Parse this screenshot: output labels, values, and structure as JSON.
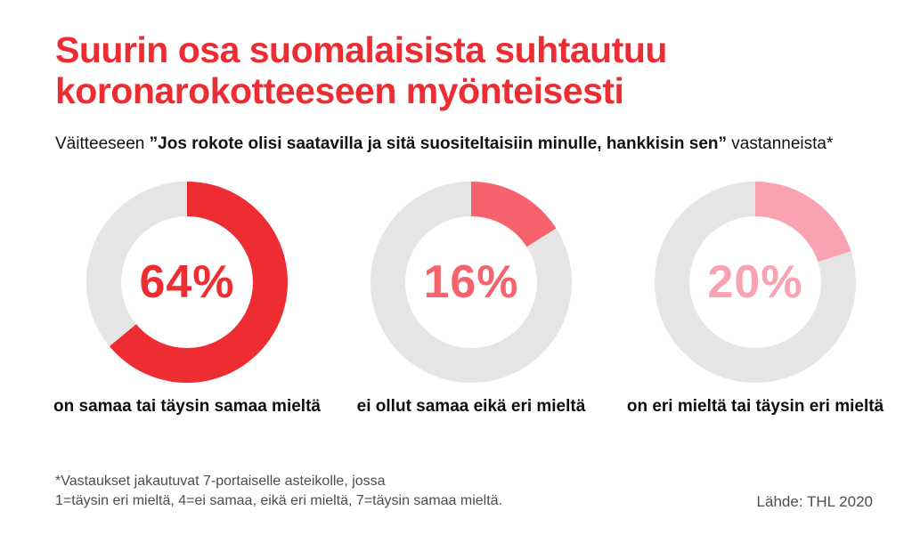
{
  "header": {
    "title_line1": "Suurin osa suomalaisista suhtautuu",
    "title_line2": "koronarokotteeseen myönteisesti",
    "title_color": "#ee2d33"
  },
  "subtitle": {
    "prefix": "Väitteeseen ",
    "quote": "”Jos rokote olisi saatavilla ja sitä suositeltaisiin minulle, hankkisin sen”",
    "suffix": " vastanneista*"
  },
  "chart_data": {
    "type": "pie",
    "variant": "donut",
    "title": "Suurin osa suomalaisista suhtautuu koronarokotteeseen myönteisesti",
    "subtitle": "Väitteeseen ”Jos rokote olisi saatavilla ja sitä suositeltaisiin minulle, hankkisin sen” vastanneista*",
    "start_angle_deg": 0,
    "direction": "clockwise",
    "track_color": "#e5e5e6",
    "donuts": [
      {
        "value": 64,
        "value_label": "64%",
        "label": "on samaa tai täysin samaa mieltä",
        "color": "#ee2d33"
      },
      {
        "value": 16,
        "value_label": "16%",
        "label": "ei ollut samaa eikä eri mieltä",
        "color": "#f8626c"
      },
      {
        "value": 20,
        "value_label": "20%",
        "label": "on eri mieltä tai täysin eri mieltä",
        "color": "#f9a3b1"
      }
    ]
  },
  "footer": {
    "footnote_line1": "*Vastaukset jakautuvat 7-portaiselle asteikolle, jossa",
    "footnote_line2": "1=täysin eri mieltä, 4=ei samaa, eikä eri mieltä, 7=täysin samaa mieltä.",
    "source": "Lähde: THL 2020"
  }
}
